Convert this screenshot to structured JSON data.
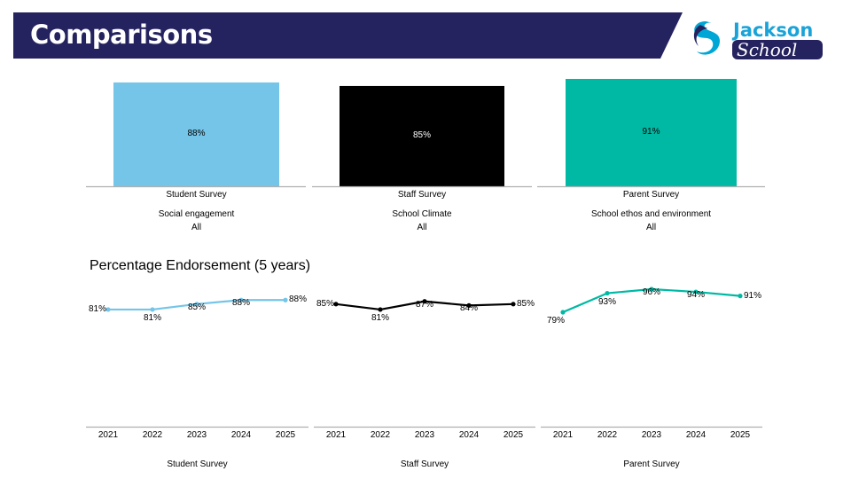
{
  "header": {
    "title": "Comparisons"
  },
  "logo": {
    "line1": "Jackson",
    "line2": "School"
  },
  "colors": {
    "student": "#74c5e8",
    "staff": "#000000",
    "parent": "#00b9a4",
    "header_bg": "#25235f"
  },
  "endorse_heading": "Percentage Endorsement (5 years)",
  "chart_data": [
    {
      "type": "bar",
      "categories": [
        "Student Survey"
      ],
      "values": [
        88
      ],
      "value_labels": [
        "88%"
      ],
      "ylim": [
        0,
        100
      ],
      "xlabel": "Student Survey",
      "subtitle": "Social engagement",
      "group": "All",
      "grid": false,
      "color": "#74c5e8"
    },
    {
      "type": "bar",
      "categories": [
        "Staff Survey"
      ],
      "values": [
        85
      ],
      "value_labels": [
        "85%"
      ],
      "ylim": [
        0,
        100
      ],
      "xlabel": "Staff Survey",
      "subtitle": "School Climate",
      "group": "All",
      "grid": false,
      "color": "#000000"
    },
    {
      "type": "bar",
      "categories": [
        "Parent Survey"
      ],
      "values": [
        91
      ],
      "value_labels": [
        "91%"
      ],
      "ylim": [
        0,
        100
      ],
      "xlabel": "Parent Survey",
      "subtitle": "School ethos and environment",
      "group": "All",
      "grid": false,
      "color": "#00b9a4"
    },
    {
      "type": "line",
      "x": [
        "2021",
        "2022",
        "2023",
        "2024",
        "2025"
      ],
      "values": [
        81,
        81,
        85,
        88,
        88
      ],
      "value_labels": [
        "81%",
        "81%",
        "85%",
        "88%",
        "88%"
      ],
      "xlabel": "Student Survey",
      "grid": false,
      "color": "#74c5e8"
    },
    {
      "type": "line",
      "x": [
        "2021",
        "2022",
        "2023",
        "2024",
        "2025"
      ],
      "values": [
        85,
        81,
        87,
        84,
        85
      ],
      "value_labels": [
        "85%",
        "81%",
        "87%",
        "84%",
        "85%"
      ],
      "xlabel": "Staff Survey",
      "grid": false,
      "color": "#000000"
    },
    {
      "type": "line",
      "x": [
        "2021",
        "2022",
        "2023",
        "2024",
        "2025"
      ],
      "values": [
        79,
        93,
        96,
        94,
        91
      ],
      "value_labels": [
        "79%",
        "93%",
        "96%",
        "94%",
        "91%"
      ],
      "xlabel": "Parent Survey",
      "grid": false,
      "color": "#00b9a4"
    }
  ]
}
